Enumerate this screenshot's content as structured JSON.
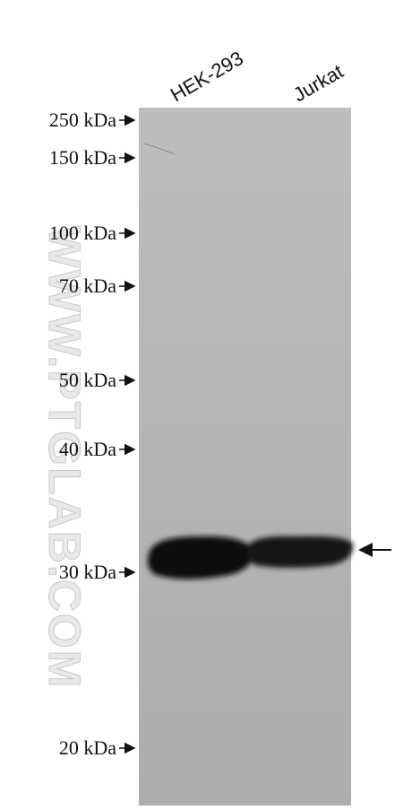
{
  "lanes": [
    "HEK-293",
    "Jurkat"
  ],
  "markers": [
    "250 kDa",
    "150 kDa",
    "100 kDa",
    "70 kDa",
    "50 kDa",
    "40 kDa",
    "30 kDa",
    "20 kDa"
  ],
  "watermark": "WWW.PTGLAB.COM"
}
